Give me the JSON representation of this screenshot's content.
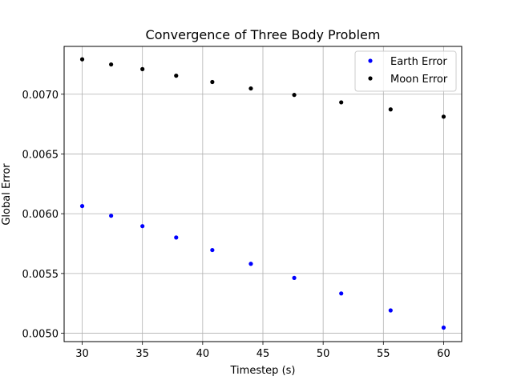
{
  "chart_data": {
    "type": "scatter",
    "title": "Convergence of Three Body Problem",
    "xlabel": "Timestep (s)",
    "ylabel": "Global Error",
    "xlim": [
      28.5,
      61.5
    ],
    "ylim": [
      0.00493,
      0.0074
    ],
    "xticks": [
      30,
      35,
      40,
      45,
      50,
      55,
      60
    ],
    "xtick_labels": [
      "30",
      "35",
      "40",
      "45",
      "50",
      "55",
      "60"
    ],
    "yticks": [
      0.005,
      0.0055,
      0.006,
      0.0065,
      0.007
    ],
    "ytick_labels": [
      "0.0050",
      "0.0055",
      "0.0060",
      "0.0065",
      "0.0070"
    ],
    "grid": true,
    "legend_position": "top-right",
    "x": [
      30.0,
      32.4,
      35.0,
      37.8,
      40.8,
      44.0,
      47.6,
      51.5,
      55.6,
      60.0
    ],
    "series": [
      {
        "name": "Earth Error",
        "color": "#0000ff",
        "values": [
          0.006064,
          0.005983,
          0.005896,
          0.005801,
          0.005696,
          0.005581,
          0.005463,
          0.005333,
          0.005191,
          0.005047
        ]
      },
      {
        "name": "Moon Error",
        "color": "#000000",
        "values": [
          0.007292,
          0.007249,
          0.00721,
          0.007155,
          0.007102,
          0.007048,
          0.006994,
          0.006932,
          0.006873,
          0.006812
        ]
      }
    ]
  }
}
